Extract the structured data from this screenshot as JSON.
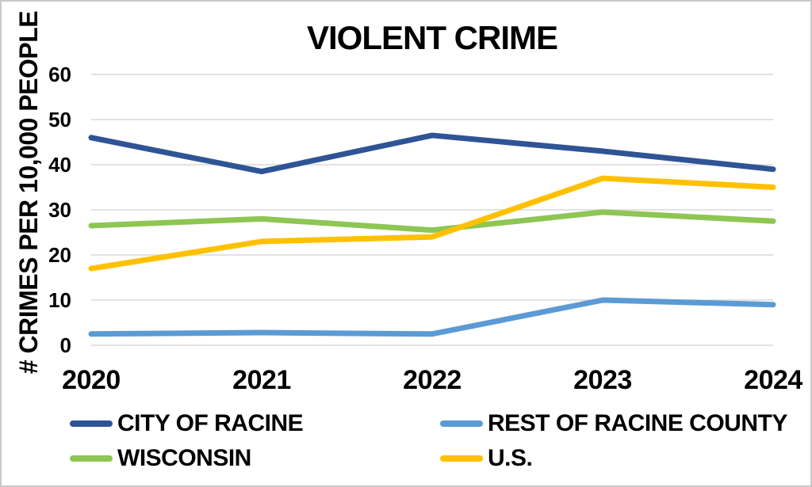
{
  "title": "VIOLENT CRIME",
  "chart_data": {
    "type": "line",
    "title": "VIOLENT CRIME",
    "xlabel": "",
    "ylabel": "# CRIMES PER 10,000 PEOPLE",
    "categories": [
      "2020",
      "2021",
      "2022",
      "2023",
      "2024"
    ],
    "series": [
      {
        "name": "CITY OF RACINE",
        "color": "#2F5496",
        "values": [
          46,
          38.5,
          46.5,
          43,
          39
        ]
      },
      {
        "name": "REST OF RACINE COUNTY",
        "color": "#5B9BD5",
        "values": [
          2.5,
          2.8,
          2.5,
          10,
          9
        ]
      },
      {
        "name": "WISCONSIN",
        "color": "#8DC653",
        "values": [
          26.5,
          28,
          25.5,
          29.5,
          27.5
        ]
      },
      {
        "name": "U.S.",
        "color": "#FFC000",
        "values": [
          17,
          23,
          24,
          37,
          35
        ]
      }
    ],
    "ylim": [
      0,
      60
    ],
    "ytick_step": 10,
    "grid": true,
    "gridline_color": "#D9D9D9",
    "line_width": 7,
    "legend_position": "bottom",
    "legend_columns": 2,
    "text_color": "#000000",
    "background_color": "#FFFFFF"
  }
}
